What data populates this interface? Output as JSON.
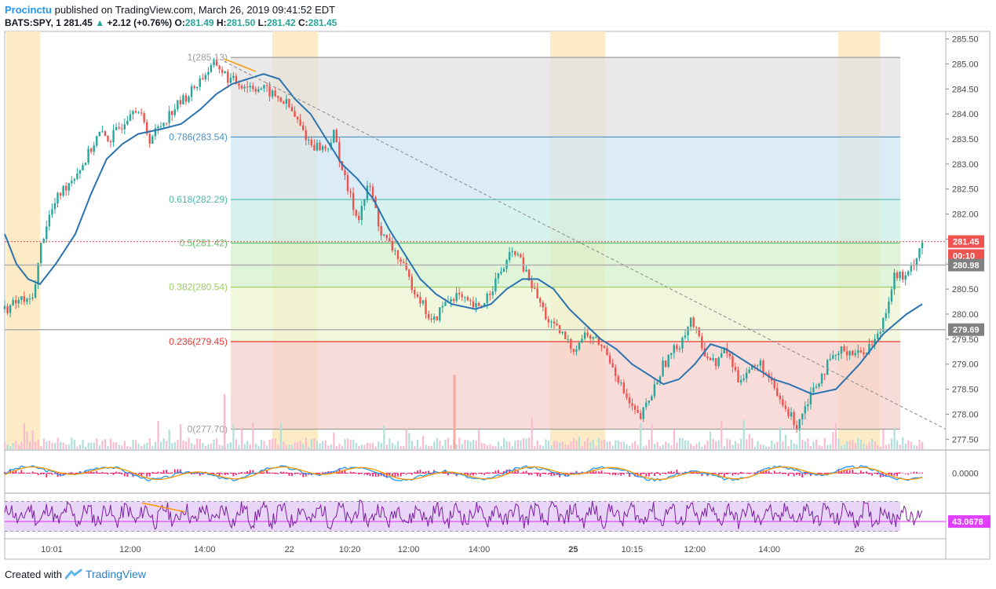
{
  "header": {
    "user": "Procinctu",
    "published": "published on TradingView.com, March 26, 2019 09:41:52 EDT",
    "symbol": "BATS:SPY, 1",
    "last": "281.45",
    "change_arrow": "▲",
    "change": "+2.12 (+0.76%)",
    "o_label": "O:",
    "o": "281.49",
    "h_label": "H:",
    "h": "281.50",
    "l_label": "L:",
    "l": "281.42",
    "c_label": "C:",
    "c": "281.45"
  },
  "footer": {
    "created_with": "Created with",
    "brand": "TradingView"
  },
  "colors": {
    "up": "#26a69a",
    "down": "#ef5350",
    "ma": "#2a73b0",
    "highlight": "#fdebc6",
    "macd_blue": "#2196f3",
    "macd_orange": "#ff9800",
    "macd_hist": "#ff1f6e",
    "rsi": "#7b1fa2",
    "rsi_band": "#e9d5f7",
    "rsi_ma": "#e040fb"
  },
  "chart_data": [
    {
      "type": "candlestick",
      "name": "BATS:SPY, 1",
      "ylim": [
        277.3,
        285.65
      ],
      "y_ticks": [
        "285.50",
        "285.00",
        "284.50",
        "284.00",
        "283.50",
        "283.00",
        "282.50",
        "282.00",
        "281.50",
        "281.00",
        "280.50",
        "280.00",
        "279.50",
        "279.00",
        "278.50",
        "278.00",
        "277.50"
      ],
      "x_ticks": [
        "10:01",
        "12:00",
        "14:00",
        "22",
        "10:20",
        "12:00",
        "14:00",
        "25",
        "10:15",
        "12:00",
        "14:00",
        "26"
      ],
      "x_ticks_bold": [
        "25"
      ],
      "fib_levels": [
        {
          "label": "1(285.13)",
          "value": 285.13,
          "color": "#9e9e9e",
          "fill": "#e1e1e1"
        },
        {
          "label": "0.786(283.54)",
          "value": 283.54,
          "color": "#4a90c9",
          "fill": "#cfe5f3"
        },
        {
          "label": "0.618(282.29)",
          "value": 282.29,
          "color": "#4db6ac",
          "fill": "#c9efe8"
        },
        {
          "label": "0.5(281.42)",
          "value": 281.42,
          "color": "#66bb6a",
          "fill": "#d6f0cc"
        },
        {
          "label": "0.382(280.54)",
          "value": 280.54,
          "color": "#9ccc65",
          "fill": "#ecf4d2"
        },
        {
          "label": "0.236(279.45)",
          "value": 279.45,
          "color": "#e53935",
          "fill": "#f5d0cd"
        },
        {
          "label": "0(277.70)",
          "value": 277.7,
          "color": "#9e9e9e",
          "fill": null
        }
      ],
      "price_labels": [
        {
          "text": "281.45",
          "value": 281.45,
          "bg": "#ef5350"
        },
        {
          "text": "00:10",
          "value": 281.17,
          "bg": "#ef5350"
        },
        {
          "text": "280.98",
          "value": 280.98,
          "bg": "#808080"
        },
        {
          "text": "279.69",
          "value": 279.69,
          "bg": "#808080"
        }
      ],
      "close_path": [
        [
          0.0,
          280.1
        ],
        [
          0.012,
          280.2
        ],
        [
          0.022,
          280.3
        ],
        [
          0.03,
          280.2
        ],
        [
          0.04,
          280.6
        ],
        [
          0.045,
          281.3
        ],
        [
          0.055,
          281.9
        ],
        [
          0.07,
          282.4
        ],
        [
          0.085,
          282.7
        ],
        [
          0.1,
          283.0
        ],
        [
          0.11,
          283.3
        ],
        [
          0.12,
          283.6
        ],
        [
          0.135,
          283.5
        ],
        [
          0.15,
          283.8
        ],
        [
          0.165,
          284.2
        ],
        [
          0.175,
          283.9
        ],
        [
          0.185,
          283.5
        ],
        [
          0.2,
          283.8
        ],
        [
          0.215,
          284.1
        ],
        [
          0.235,
          284.4
        ],
        [
          0.255,
          284.8
        ],
        [
          0.27,
          285.0
        ],
        [
          0.285,
          284.7
        ],
        [
          0.3,
          284.6
        ],
        [
          0.33,
          284.5
        ],
        [
          0.36,
          284.2
        ],
        [
          0.375,
          283.8
        ],
        [
          0.39,
          283.4
        ],
        [
          0.41,
          283.3
        ],
        [
          0.42,
          283.6
        ],
        [
          0.435,
          282.6
        ],
        [
          0.45,
          281.9
        ],
        [
          0.465,
          282.6
        ],
        [
          0.48,
          281.6
        ],
        [
          0.5,
          281.2
        ],
        [
          0.515,
          280.7
        ],
        [
          0.53,
          280.3
        ],
        [
          0.545,
          279.8
        ],
        [
          0.56,
          280.2
        ],
        [
          0.575,
          280.4
        ],
        [
          0.59,
          280.2
        ],
        [
          0.605,
          280.1
        ],
        [
          0.62,
          280.5
        ],
        [
          0.635,
          280.9
        ],
        [
          0.65,
          281.3
        ],
        [
          0.665,
          280.8
        ],
        [
          0.68,
          280.3
        ],
        [
          0.695,
          279.8
        ],
        [
          0.71,
          279.6
        ],
        [
          0.725,
          279.3
        ],
        [
          0.74,
          279.6
        ],
        [
          0.76,
          279.4
        ],
        [
          0.775,
          279.0
        ],
        [
          0.79,
          278.4
        ],
        [
          0.8,
          278.1
        ],
        [
          0.81,
          277.9
        ],
        [
          0.825,
          278.4
        ],
        [
          0.84,
          279.0
        ],
        [
          0.86,
          279.4
        ],
        [
          0.875,
          279.9
        ],
        [
          0.89,
          279.3
        ],
        [
          0.905,
          279.0
        ],
        [
          0.92,
          279.3
        ],
        [
          0.935,
          278.7
        ],
        [
          0.95,
          278.9
        ],
        [
          0.965,
          279.0
        ],
        [
          0.98,
          278.5
        ],
        [
          0.995,
          278.1
        ],
        [
          1.01,
          277.8
        ],
        [
          1.03,
          278.5
        ],
        [
          1.05,
          279.0
        ],
        [
          1.07,
          279.3
        ],
        [
          1.09,
          279.2
        ],
        [
          1.105,
          279.4
        ],
        [
          1.115,
          279.6
        ],
        [
          1.135,
          280.8
        ],
        [
          1.15,
          280.7
        ],
        [
          1.17,
          281.45
        ]
      ],
      "ma_path": [
        [
          0.0,
          281.6
        ],
        [
          0.015,
          281.0
        ],
        [
          0.03,
          280.7
        ],
        [
          0.045,
          280.6
        ],
        [
          0.065,
          281.0
        ],
        [
          0.09,
          281.6
        ],
        [
          0.11,
          282.4
        ],
        [
          0.13,
          283.1
        ],
        [
          0.15,
          283.4
        ],
        [
          0.17,
          283.6
        ],
        [
          0.2,
          283.7
        ],
        [
          0.225,
          283.8
        ],
        [
          0.25,
          284.1
        ],
        [
          0.27,
          284.4
        ],
        [
          0.29,
          284.6
        ],
        [
          0.31,
          284.7
        ],
        [
          0.33,
          284.8
        ],
        [
          0.35,
          284.7
        ],
        [
          0.37,
          284.3
        ],
        [
          0.39,
          284.0
        ],
        [
          0.41,
          283.5
        ],
        [
          0.43,
          283.0
        ],
        [
          0.45,
          282.7
        ],
        [
          0.47,
          282.3
        ],
        [
          0.49,
          281.7
        ],
        [
          0.51,
          281.2
        ],
        [
          0.53,
          280.7
        ],
        [
          0.55,
          280.4
        ],
        [
          0.57,
          280.2
        ],
        [
          0.6,
          280.1
        ],
        [
          0.62,
          280.2
        ],
        [
          0.64,
          280.5
        ],
        [
          0.66,
          280.7
        ],
        [
          0.68,
          280.7
        ],
        [
          0.7,
          280.5
        ],
        [
          0.72,
          280.1
        ],
        [
          0.74,
          279.8
        ],
        [
          0.76,
          279.5
        ],
        [
          0.78,
          279.3
        ],
        [
          0.8,
          279.0
        ],
        [
          0.82,
          278.8
        ],
        [
          0.84,
          278.6
        ],
        [
          0.86,
          278.7
        ],
        [
          0.88,
          279.0
        ],
        [
          0.9,
          279.4
        ],
        [
          0.92,
          279.3
        ],
        [
          0.94,
          279.1
        ],
        [
          0.96,
          278.9
        ],
        [
          0.98,
          278.7
        ],
        [
          1.0,
          278.6
        ],
        [
          1.03,
          278.4
        ],
        [
          1.06,
          278.5
        ],
        [
          1.09,
          279.0
        ],
        [
          1.12,
          279.6
        ],
        [
          1.15,
          280.0
        ],
        [
          1.17,
          280.2
        ]
      ],
      "x_domain": [
        0,
        1.2
      ]
    },
    {
      "type": "line",
      "name": "MACD",
      "ylim": [
        -1,
        1
      ],
      "y_ticks": [
        "0.0000"
      ],
      "current_label": "0.0000"
    },
    {
      "type": "line",
      "name": "RSI",
      "ylim": [
        20,
        80
      ],
      "band": [
        30,
        70
      ],
      "current": 43.0678,
      "current_label": "43.0678"
    }
  ]
}
